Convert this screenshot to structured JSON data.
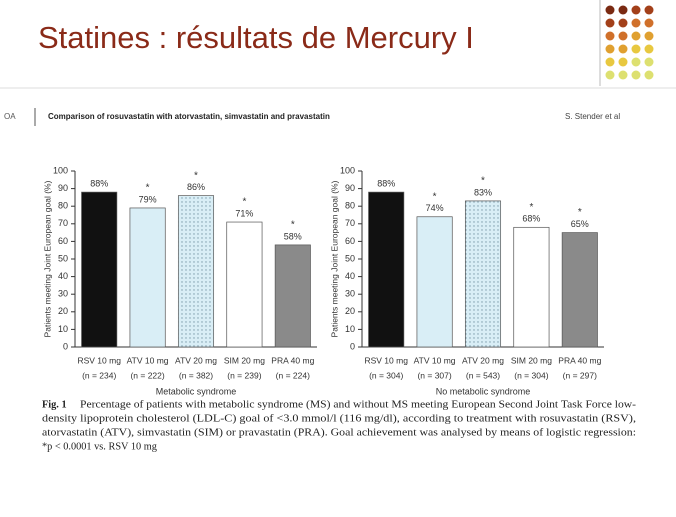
{
  "slide_title": "Statines : résultats de Mercury I",
  "header": {
    "left": "OA",
    "title": "Comparison of rosuvastatin with atorvastatin, simvastatin and pravastatin",
    "author": "S. Stender et al"
  },
  "caption": {
    "label": "Fig. 1",
    "lines": [
      "Percentage of patients with metabolic syndrome (MS) and without MS meeting European Second Joint Task Force low-",
      "density lipoprotein cholesterol (LDL-C) goal of <3.0 mmol/l (116 mg/dl), according to treatment with rosuvastatin (RSV),",
      "atorvastatin (ATV), simvastatin (SIM) or pravastatin (PRA). Goal achievement was analysed by means of logistic regression:",
      "*p < 0.0001 vs. RSV 10 mg"
    ]
  },
  "chart_data": [
    {
      "type": "bar",
      "xlabel": "Metabolic syndrome",
      "ylabel": "Patients meeting Joint European goal (%)",
      "categories": [
        "RSV 10 mg",
        "ATV 10 mg",
        "ATV 20 mg",
        "SIM 20 mg",
        "PRA 40 mg"
      ],
      "category_counts": [
        "(n = 234)",
        "(n = 222)",
        "(n = 382)",
        "(n = 239)",
        "(n = 224)"
      ],
      "values": [
        88,
        79,
        86,
        71,
        58
      ],
      "value_labels": [
        "88%",
        "79%",
        "86%",
        "71%",
        "58%"
      ],
      "colors": [
        "#111111",
        "#d9eef6",
        "#d9eef6",
        "#ffffff",
        "#8a8a8a"
      ],
      "dotted": [
        false,
        false,
        true,
        false,
        false
      ],
      "significant": [
        false,
        true,
        true,
        true,
        true
      ],
      "significance_symbol": "*",
      "ylim": [
        0,
        100
      ],
      "yticks": [
        0,
        10,
        20,
        30,
        40,
        50,
        60,
        70,
        80,
        90,
        100
      ]
    },
    {
      "type": "bar",
      "xlabel": "No metabolic syndrome",
      "ylabel": "Patients meeting Joint European goal (%)",
      "categories": [
        "RSV 10 mg",
        "ATV 10 mg",
        "ATV 20 mg",
        "SIM 20 mg",
        "PRA 40 mg"
      ],
      "category_counts": [
        "(n = 304)",
        "(n = 307)",
        "(n = 543)",
        "(n = 304)",
        "(n = 297)"
      ],
      "values": [
        88,
        74,
        83,
        68,
        65
      ],
      "value_labels": [
        "88%",
        "74%",
        "83%",
        "68%",
        "65%"
      ],
      "colors": [
        "#111111",
        "#d9eef6",
        "#d9eef6",
        "#ffffff",
        "#8a8a8a"
      ],
      "dotted": [
        false,
        false,
        true,
        false,
        false
      ],
      "significant": [
        false,
        true,
        true,
        true,
        true
      ],
      "significance_symbol": "*",
      "ylim": [
        0,
        100
      ],
      "yticks": [
        0,
        10,
        20,
        30,
        40,
        50,
        60,
        70,
        80,
        90,
        100
      ]
    }
  ]
}
